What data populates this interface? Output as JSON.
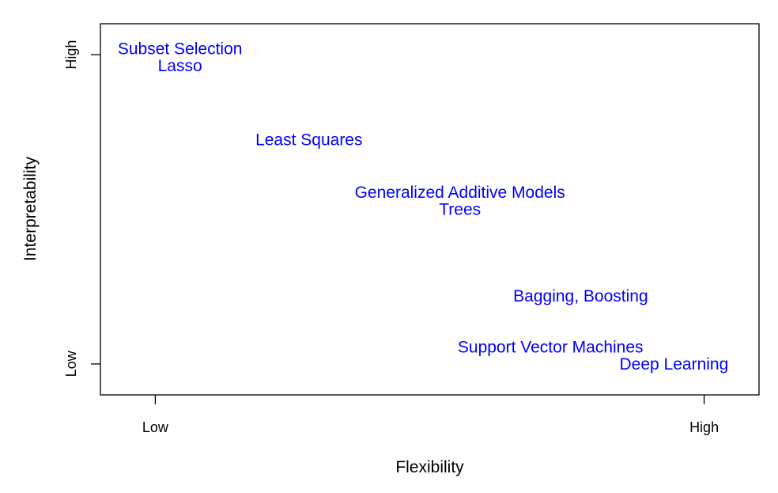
{
  "chart_data": {
    "type": "scatter",
    "title": "",
    "xlabel": "Flexibility",
    "ylabel": "Interpretability",
    "xlim": [
      -0.1,
      1.1
    ],
    "ylim": [
      -0.1,
      1.1
    ],
    "x_ticks": [
      {
        "value": 0,
        "label": "Low"
      },
      {
        "value": 1,
        "label": "High"
      }
    ],
    "y_ticks": [
      {
        "value": 0,
        "label": "Low"
      },
      {
        "value": 1,
        "label": "High"
      }
    ],
    "grid": false,
    "legend": "none",
    "label_color": "#0000ff",
    "points": [
      {
        "label": "Subset Selection",
        "x": 0.045,
        "y": 1.02
      },
      {
        "label": "Lasso",
        "x": 0.045,
        "y": 0.965
      },
      {
        "label": "Least Squares",
        "x": 0.28,
        "y": 0.725
      },
      {
        "label": "Generalized Additive Models",
        "x": 0.555,
        "y": 0.555
      },
      {
        "label": "Trees",
        "x": 0.555,
        "y": 0.5
      },
      {
        "label": "Bagging, Boosting",
        "x": 0.775,
        "y": 0.22
      },
      {
        "label": "Support Vector Machines",
        "x": 0.72,
        "y": 0.055
      },
      {
        "label": "Deep Learning",
        "x": 0.945,
        "y": 0.0
      }
    ]
  }
}
